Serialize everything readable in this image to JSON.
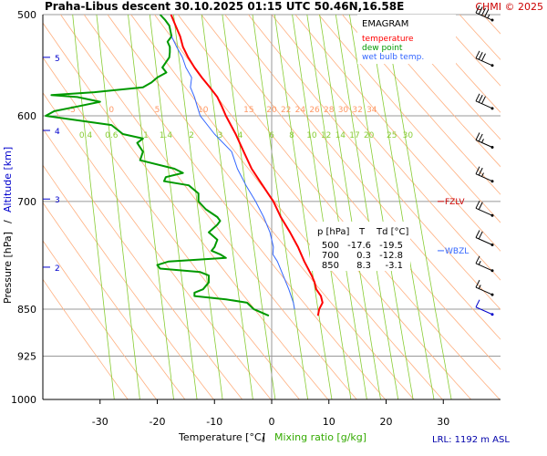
{
  "header": {
    "title": "Praha-Libus   descent   30.10.2025 01:15 UTC  50.46N,16.58E",
    "credit": "CHMI © 2025"
  },
  "legend": {
    "title": "EMAGRAM",
    "items": [
      {
        "label": "temperature",
        "color": "#ff0000"
      },
      {
        "label": "dew point",
        "color": "#009900"
      },
      {
        "label": "wet bulb temp.",
        "color": "#3366ff"
      }
    ]
  },
  "table": {
    "headers": [
      "p [hPa]",
      "T",
      "Td [°C]"
    ],
    "rows": [
      [
        "500",
        "-17.6",
        "-19.5"
      ],
      [
        "700",
        "0.3",
        "-12.8"
      ],
      [
        "850",
        "8.3",
        "-3.1"
      ]
    ]
  },
  "levels": {
    "fzlv": {
      "label": "FZLV",
      "pressure": 700
    },
    "wbzl": {
      "label": "WBZL",
      "pressure": 765
    }
  },
  "footer": {
    "lrl": "LRL: 1192 m ASL",
    "xlabel_temp": "Temperature [°C]",
    "xlabel_sep": "/",
    "xlabel_mix": "Mixing ratio [g/kg]",
    "ylabel_p": "Pressure [hPa]",
    "ylabel_sep": "/",
    "ylabel_alt": "Altitude [km]"
  },
  "colors": {
    "temperature": "#ff0000",
    "dewpoint": "#009900",
    "wetbulb": "#3366ff",
    "isobar": "#999999",
    "dry_adiabat": "#ffb080",
    "mixing_ratio": "#88cc33",
    "altitude": "#0000cc",
    "wind": "#000000"
  },
  "chart_data": {
    "type": "line",
    "title": "Praha-Libus descent 30.10.2025 01:15 UTC 50.46N,16.58E",
    "xlabel": "Temperature [°C] / Mixing ratio [g/kg]",
    "ylabel": "Pressure [hPa] / Altitude [km]",
    "xlim": [
      -40,
      40
    ],
    "ylim": [
      1000,
      500
    ],
    "x_ticks": [
      -30,
      -20,
      -10,
      0,
      10,
      20,
      30
    ],
    "p_ticks": [
      500,
      600,
      700,
      850,
      925,
      1000
    ],
    "alt_ticks": [
      {
        "label": "5",
        "p": 540
      },
      {
        "label": "4",
        "p": 616
      },
      {
        "label": "3",
        "p": 697
      },
      {
        "label": "2",
        "p": 788
      }
    ],
    "dry_adiabat_labels": [
      "-5",
      "0",
      "5",
      "10",
      "15",
      "20",
      "22",
      "24",
      "26",
      "28",
      "30",
      "32",
      "34"
    ],
    "dry_adiabat_label_temps": [
      -35,
      -28,
      -20,
      -12,
      -4,
      0,
      2.5,
      5,
      7.5,
      10,
      12.5,
      15,
      17.5
    ],
    "mixing_ratio_labels": [
      "0.4",
      "0.6",
      "1",
      "1.4",
      "2",
      "3",
      "4",
      "6",
      "8",
      "10",
      "12",
      "14",
      "17",
      "20",
      "25",
      "30"
    ],
    "mixing_ratio_label_temps": [
      -32.5,
      -28,
      -22,
      -18.5,
      -14,
      -9,
      -5.5,
      0,
      3.5,
      7,
      9.5,
      12,
      14.5,
      17,
      21,
      23.8
    ],
    "series": [
      {
        "name": "temperature",
        "p": [
          500,
          510,
          520,
          530,
          540,
          550,
          560,
          570,
          580,
          590,
          600,
          620,
          640,
          660,
          680,
          700,
          720,
          740,
          760,
          780,
          800,
          810,
          820,
          830,
          840,
          850,
          860
        ],
        "t": [
          -17.6,
          -16.8,
          -16.0,
          -15.5,
          -14.6,
          -13.5,
          -12.2,
          -10.8,
          -9.5,
          -8.7,
          -8.0,
          -6.3,
          -4.9,
          -3.5,
          -1.6,
          0.3,
          1.6,
          3.2,
          4.6,
          5.7,
          7.0,
          7.5,
          7.8,
          8.6,
          8.9,
          8.3,
          8.1
        ]
      },
      {
        "name": "dew point",
        "p": [
          500,
          505,
          510,
          520,
          525,
          530,
          535,
          540,
          550,
          555,
          560,
          565,
          570,
          575,
          578,
          580,
          585,
          590,
          595,
          600,
          610,
          620,
          625,
          630,
          640,
          650,
          660,
          665,
          670,
          675,
          680,
          690,
          700,
          710,
          720,
          725,
          730,
          740,
          750,
          760,
          765,
          770,
          775,
          780,
          785,
          790,
          795,
          800,
          810,
          820,
          825,
          830,
          835,
          840,
          850,
          860
        ],
        "t": [
          -19.5,
          -18.6,
          -17.9,
          -17.5,
          -18.2,
          -17.8,
          -17.8,
          -17.9,
          -19.1,
          -18.4,
          -20.0,
          -21.0,
          -22.5,
          -31.0,
          -38.5,
          -34.0,
          -30.0,
          -34.0,
          -38.0,
          -39.5,
          -28.0,
          -26.0,
          -22.5,
          -23.5,
          -22.5,
          -23.0,
          -17.0,
          -15.5,
          -18.5,
          -18.8,
          -14.5,
          -12.8,
          -12.8,
          -11.5,
          -9.5,
          -9.0,
          -9.5,
          -11.0,
          -9.5,
          -10.0,
          -10.5,
          -9.0,
          -8.0,
          -18.0,
          -20.0,
          -19.5,
          -12.5,
          -11.0,
          -11.0,
          -12.0,
          -13.5,
          -13.5,
          -8.0,
          -4.3,
          -3.1,
          -0.5
        ]
      },
      {
        "name": "wet bulb temp.",
        "p": [
          520,
          530,
          540,
          550,
          560,
          570,
          580,
          590,
          600,
          620,
          640,
          660,
          680,
          700,
          720,
          740,
          760,
          770,
          780,
          800,
          820,
          840,
          850
        ],
        "t": [
          -17.5,
          -16.6,
          -15.6,
          -15.0,
          -14.0,
          -14.2,
          -13.5,
          -13.0,
          -12.5,
          -10.0,
          -7.0,
          -6.0,
          -4.5,
          -2.8,
          -1.4,
          -0.3,
          0.3,
          0.2,
          1.0,
          2.0,
          3.0,
          3.8,
          4.0
        ]
      }
    ],
    "wind_barbs": [
      {
        "p": 505,
        "speed_kt": 45,
        "color": "#000000"
      },
      {
        "p": 548,
        "speed_kt": 30,
        "color": "#000000"
      },
      {
        "p": 592,
        "speed_kt": 30,
        "color": "#000000"
      },
      {
        "p": 635,
        "speed_kt": 25,
        "color": "#000000"
      },
      {
        "p": 675,
        "speed_kt": 25,
        "color": "#000000"
      },
      {
        "p": 718,
        "speed_kt": 20,
        "color": "#000000"
      },
      {
        "p": 757,
        "speed_kt": 20,
        "color": "#000000"
      },
      {
        "p": 793,
        "speed_kt": 15,
        "color": "#000000"
      },
      {
        "p": 828,
        "speed_kt": 15,
        "color": "#000000"
      },
      {
        "p": 858,
        "speed_kt": 10,
        "color": "#0000cc"
      }
    ]
  }
}
